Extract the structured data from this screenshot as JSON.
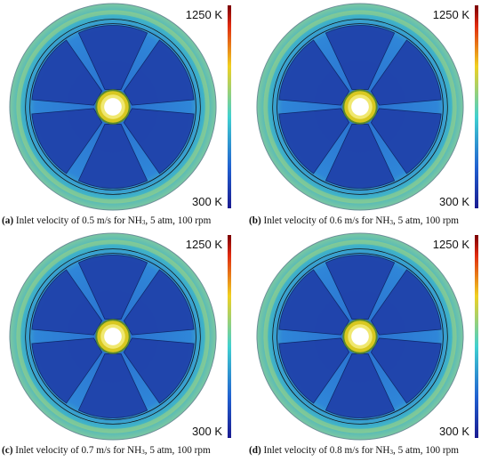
{
  "panels": [
    {
      "label": "(a)",
      "caption_before": "Inlet velocity of 0.5 m/s for NH",
      "caption_sub": "3",
      "caption_after": ", 5 atm, 100 rpm",
      "colorbar_max": "1250 K",
      "colorbar_min": "300 K"
    },
    {
      "label": "(b)",
      "caption_before": "Inlet velocity of 0.6 m/s for NH",
      "caption_sub": "3",
      "caption_after": ", 5 atm, 100 rpm",
      "colorbar_max": "1250 K",
      "colorbar_min": "300 K"
    },
    {
      "label": "(c)",
      "caption_before": "Inlet velocity of 0.7 m/s for NH",
      "caption_sub": "3",
      "caption_after": ", 5 atm, 100 rpm",
      "colorbar_max": "1250 K",
      "colorbar_min": "300 K"
    },
    {
      "label": "(d)",
      "caption_before": "Inlet velocity of 0.8 m/s for NH",
      "caption_sub": "3",
      "caption_after": ", 5 atm, 100 rpm",
      "colorbar_max": "1250 K",
      "colorbar_min": "300 K"
    }
  ]
}
